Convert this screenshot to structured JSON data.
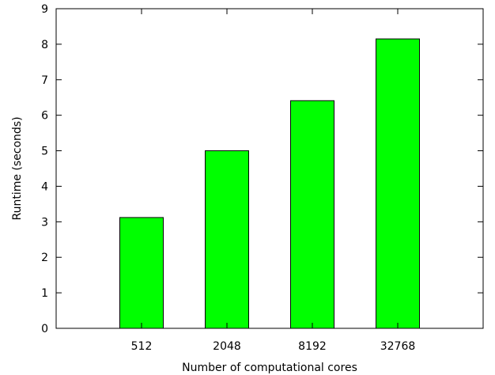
{
  "chart_data": {
    "type": "bar",
    "title": "",
    "xlabel": "Number of computational cores",
    "ylabel": "Runtime (seconds)",
    "categories": [
      "512",
      "2048",
      "8192",
      "32768"
    ],
    "values": [
      3.12,
      5.0,
      6.41,
      8.15
    ],
    "ylim": [
      0,
      9
    ],
    "yticks": [
      0,
      1,
      2,
      3,
      4,
      5,
      6,
      7,
      8,
      9
    ],
    "grid": false,
    "legend": "none",
    "bar_color": "#00ff00",
    "bar_edge_color": "#000000"
  }
}
